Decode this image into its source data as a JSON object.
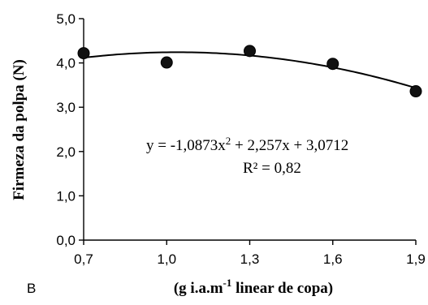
{
  "chart_data": {
    "type": "scatter",
    "panel_label": "B",
    "ylabel": "Firmeza da polpa (N)",
    "xlabel": {
      "prefix": "(g i.a.m",
      "superscript": "-1",
      "suffix": " linear de copa)"
    },
    "xlim": [
      0.7,
      1.9
    ],
    "ylim": [
      0.0,
      5.0
    ],
    "x_ticks": [
      0.7,
      1.0,
      1.3,
      1.6,
      1.9
    ],
    "x_tick_labels": [
      "0,7",
      "1,0",
      "1,3",
      "1,6",
      "1,9"
    ],
    "y_ticks": [
      0.0,
      1.0,
      2.0,
      3.0,
      4.0,
      5.0
    ],
    "y_tick_labels": [
      "0,0",
      "1,0",
      "2,0",
      "3,0",
      "4,0",
      "5,0"
    ],
    "grid": false,
    "points": [
      {
        "x": 0.7,
        "y": 4.22
      },
      {
        "x": 1.0,
        "y": 4.01
      },
      {
        "x": 1.3,
        "y": 4.27
      },
      {
        "x": 1.6,
        "y": 3.98
      },
      {
        "x": 1.9,
        "y": 3.36
      }
    ],
    "fit": {
      "a": -1.0873,
      "b": 2.257,
      "c": 3.0712
    },
    "equation": {
      "part1": "y = -1,0873x",
      "exponent": "2",
      "part2": " + 2,257x + 3,0712"
    },
    "r_squared": "R² = 0,82"
  }
}
